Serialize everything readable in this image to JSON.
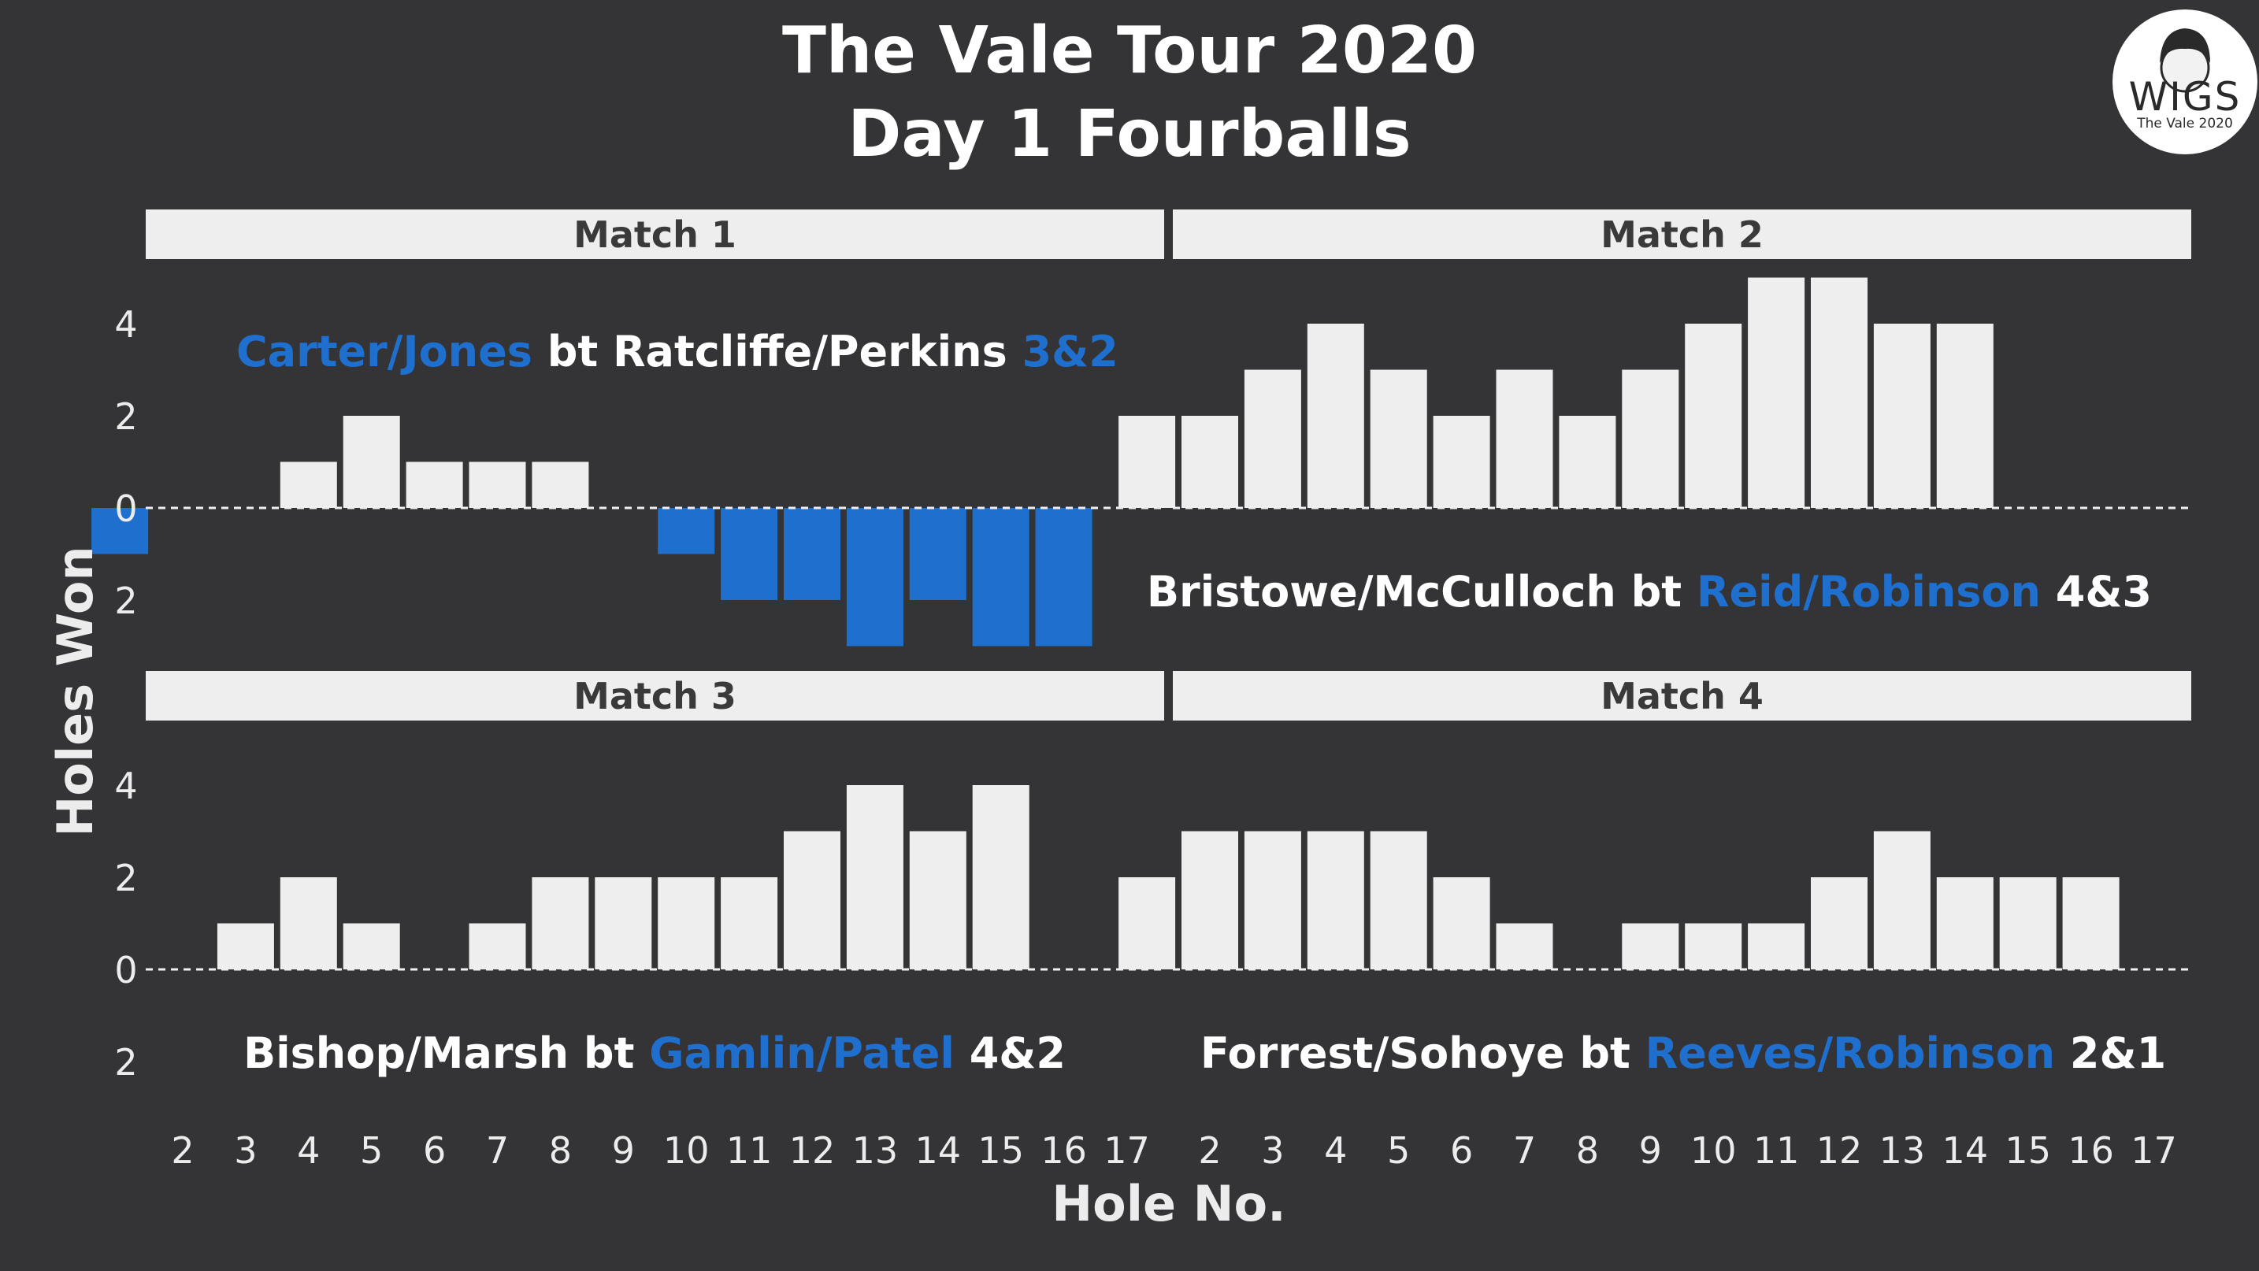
{
  "chart_data": {
    "type": "bar",
    "title": [
      "The Vale Tour 2020",
      "Day 1 Fourballs"
    ],
    "xlabel": "Hole No.",
    "ylabel": "Holes Won",
    "ylim": [
      -3,
      5
    ],
    "y_ticks": [
      {
        "value": 4,
        "label": "4"
      },
      {
        "value": 2,
        "label": "2"
      },
      {
        "value": 0,
        "label": "0"
      },
      {
        "value": -2,
        "label": "2"
      }
    ],
    "x_ticks": [
      "2",
      "3",
      "4",
      "5",
      "6",
      "7",
      "8",
      "9",
      "10",
      "11",
      "12",
      "13",
      "14",
      "15",
      "16",
      "17"
    ],
    "colors": {
      "positive": "#eeeeee",
      "negative": "#1f6fcf",
      "strip": "#eeeeee",
      "background": "#343437",
      "white_text": "#ffffff"
    },
    "panels": [
      {
        "title": "Match 1",
        "holes": [
          1,
          2,
          3,
          4,
          5,
          6,
          7,
          8,
          9,
          10,
          11,
          12,
          13,
          14,
          15,
          16,
          17
        ],
        "values": [
          -1,
          0,
          0,
          1,
          2,
          1,
          1,
          1,
          0,
          -1,
          -2,
          -2,
          -3,
          -2,
          -3,
          -3,
          null
        ],
        "annotation": [
          {
            "text": "Carter/Jones",
            "color": "#1f6fcf"
          },
          {
            "text": " bt Ratcliffe/Perkins ",
            "color": "#ffffff"
          },
          {
            "text": "3&2",
            "color": "#1f6fcf"
          }
        ]
      },
      {
        "title": "Match 2",
        "holes": [
          1,
          2,
          3,
          4,
          5,
          6,
          7,
          8,
          9,
          10,
          11,
          12,
          13,
          14,
          15,
          16,
          17
        ],
        "values": [
          2,
          2,
          3,
          4,
          3,
          2,
          3,
          2,
          3,
          4,
          5,
          5,
          4,
          4,
          null,
          null,
          null
        ],
        "annotation": [
          {
            "text": "Bristowe/McCulloch bt ",
            "color": "#ffffff"
          },
          {
            "text": "Reid/Robinson",
            "color": "#1f6fcf"
          },
          {
            "text": " 4&3",
            "color": "#ffffff"
          }
        ]
      },
      {
        "title": "Match 3",
        "holes": [
          1,
          2,
          3,
          4,
          5,
          6,
          7,
          8,
          9,
          10,
          11,
          12,
          13,
          14,
          15,
          16,
          17
        ],
        "values": [
          0,
          0,
          1,
          2,
          1,
          0,
          1,
          2,
          2,
          2,
          2,
          3,
          4,
          3,
          4,
          null,
          null
        ],
        "annotation": [
          {
            "text": "Bishop/Marsh bt ",
            "color": "#ffffff"
          },
          {
            "text": "Gamlin/Patel",
            "color": "#1f6fcf"
          },
          {
            "text": " 4&2",
            "color": "#ffffff"
          }
        ]
      },
      {
        "title": "Match 4",
        "holes": [
          1,
          2,
          3,
          4,
          5,
          6,
          7,
          8,
          9,
          10,
          11,
          12,
          13,
          14,
          15,
          16,
          17
        ],
        "values": [
          2,
          3,
          3,
          3,
          3,
          2,
          1,
          0,
          1,
          1,
          1,
          2,
          3,
          2,
          2,
          2,
          null
        ],
        "annotation": [
          {
            "text": "Forrest/Sohoye bt ",
            "color": "#ffffff"
          },
          {
            "text": "Reeves/Robinson",
            "color": "#1f6fcf"
          },
          {
            "text": " 2&1",
            "color": "#ffffff"
          }
        ]
      }
    ]
  },
  "logo": {
    "text": "WIGS",
    "subtext": "The Vale 2020"
  }
}
